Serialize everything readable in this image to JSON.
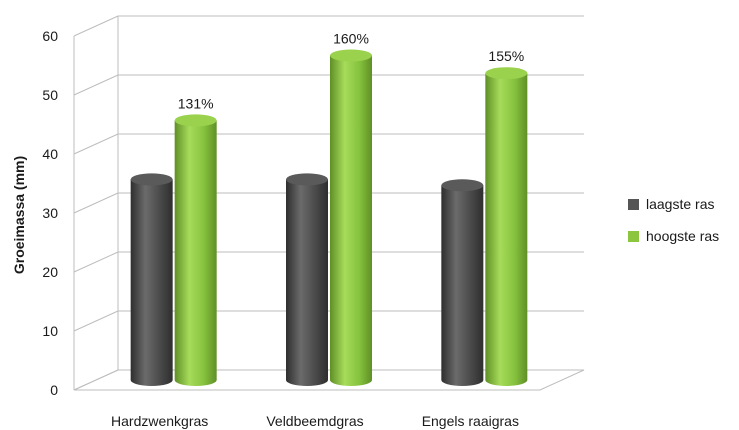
{
  "chart_data": {
    "type": "bar",
    "style": "3d-cylinder",
    "categories": [
      "Hardzwenkgras",
      "Veldbeemdgras",
      "Engels raaigras"
    ],
    "series": [
      {
        "name": "laagste ras",
        "color": "#555555",
        "values": [
          34,
          34,
          33
        ]
      },
      {
        "name": "hoogste ras",
        "color": "#8cc63f",
        "values": [
          44,
          55,
          52
        ]
      }
    ],
    "data_labels": [
      "131%",
      "160%",
      "155%"
    ],
    "ylabel": "Groeimassa (mm)",
    "yticks": [
      "0",
      "10",
      "20",
      "30",
      "40",
      "50",
      "60"
    ],
    "ylim": [
      0,
      60
    ],
    "grid": true,
    "legend": "right"
  }
}
